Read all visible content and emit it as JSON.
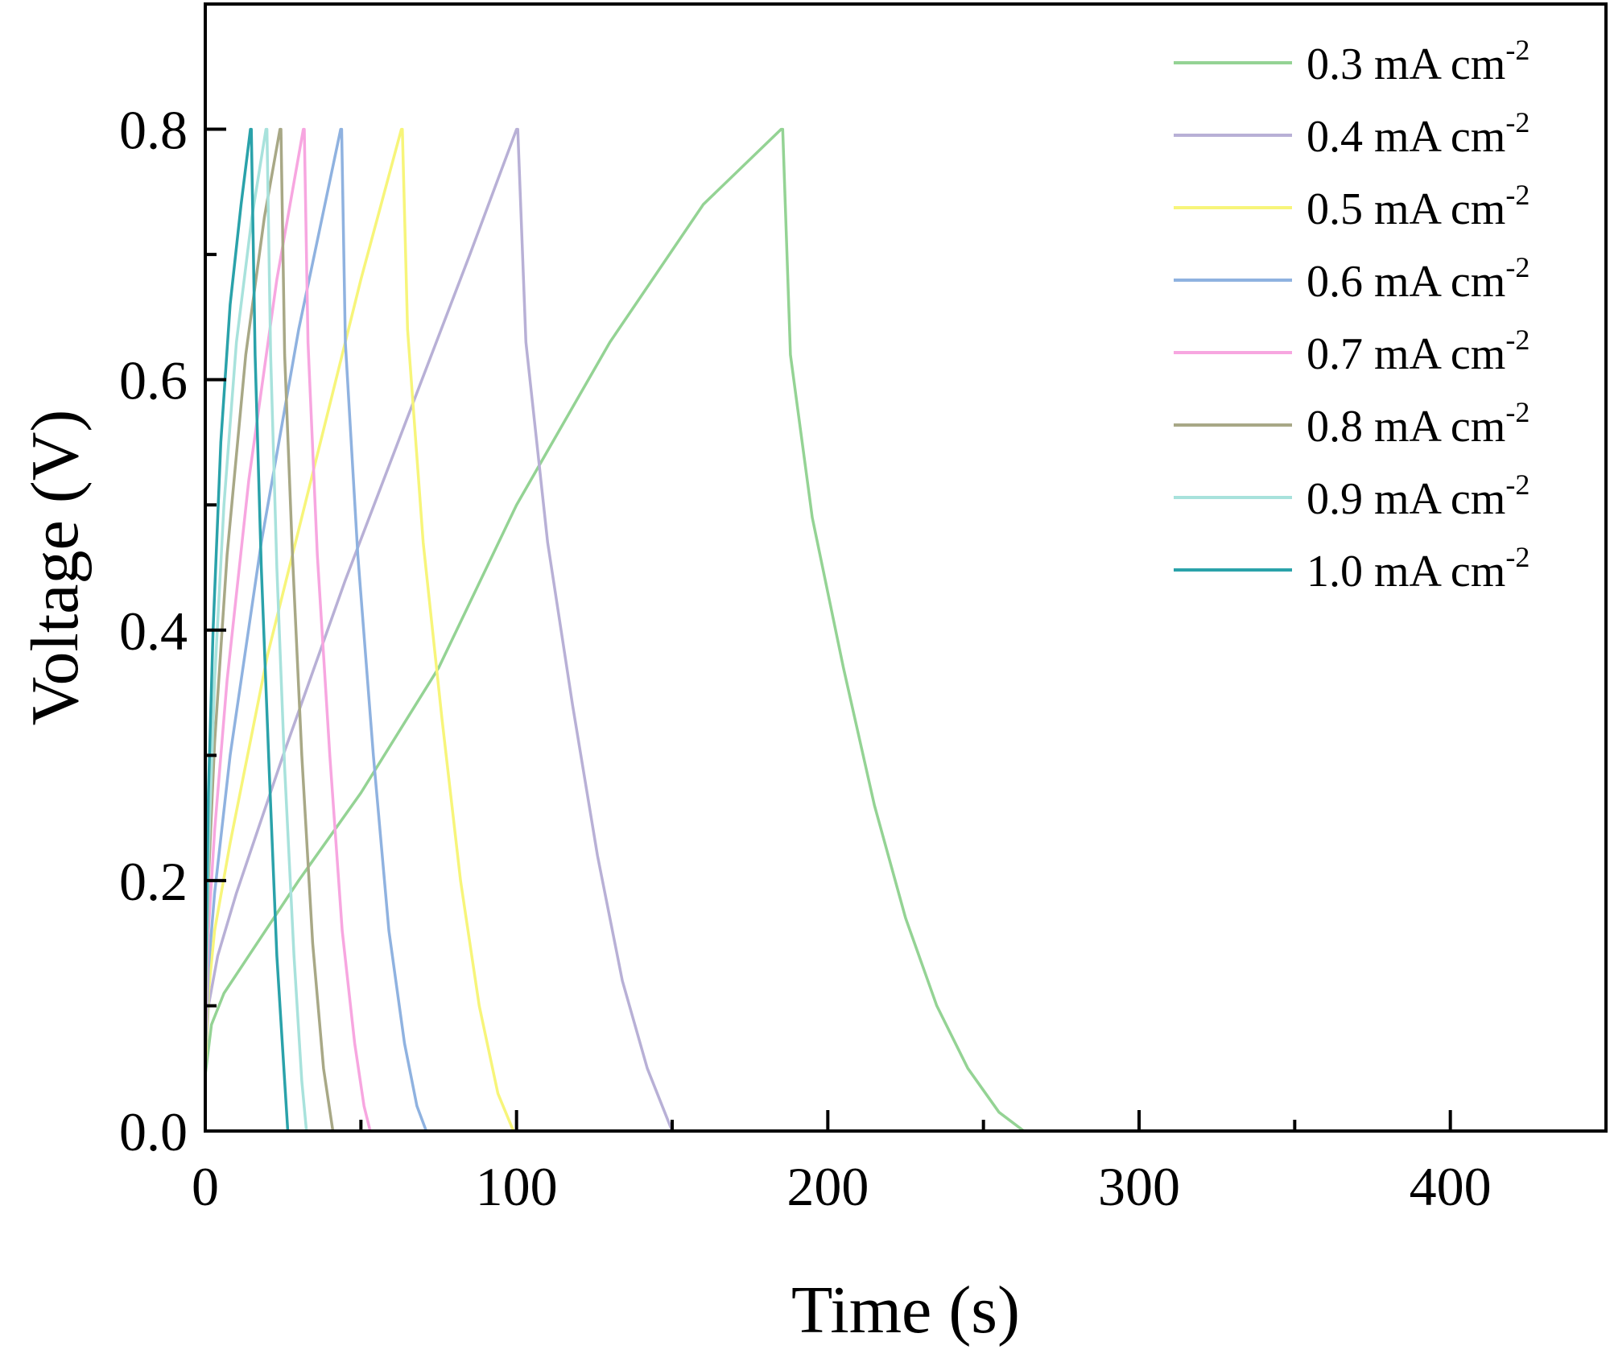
{
  "chart_data": {
    "type": "line",
    "title": "",
    "xlabel": "Time (s)",
    "ylabel": "Voltage (V)",
    "xlim": [
      0,
      450
    ],
    "ylim": [
      0,
      0.9
    ],
    "x_major_ticks": [
      0,
      100,
      200,
      300,
      400
    ],
    "x_tick_labels": [
      "0",
      "100",
      "200",
      "300",
      "400"
    ],
    "x_minor_ticks": [
      50,
      150,
      250,
      350
    ],
    "y_major_ticks": [
      0,
      0.2,
      0.4,
      0.6,
      0.8
    ],
    "y_tick_labels": [
      "0.0",
      "0.2",
      "0.4",
      "0.6",
      "0.8"
    ],
    "y_minor_ticks": [
      0.1,
      0.3,
      0.5,
      0.7
    ],
    "grid": false,
    "legend_position": "top-right",
    "series": [
      {
        "name": "0.3 mA cm",
        "superscript": "-2",
        "color": "#94d394",
        "x": [
          0,
          2,
          6,
          14,
          30,
          50,
          75,
          100,
          130,
          160,
          185,
          185.5,
          188,
          195,
          205,
          215,
          225,
          235,
          245,
          255,
          263
        ],
        "y": [
          0.045,
          0.085,
          0.11,
          0.14,
          0.2,
          0.27,
          0.37,
          0.5,
          0.63,
          0.74,
          0.8,
          0.8,
          0.62,
          0.49,
          0.37,
          0.26,
          0.17,
          0.1,
          0.05,
          0.015,
          0
        ]
      },
      {
        "name": "0.4 mA cm",
        "superscript": "-2",
        "color": "#b8b0d6",
        "x": [
          0,
          1,
          4,
          10,
          25,
          45,
          65,
          85,
          100,
          100.4,
          103,
          110,
          118,
          126,
          134,
          142,
          150
        ],
        "y": [
          0.05,
          0.1,
          0.14,
          0.19,
          0.3,
          0.44,
          0.57,
          0.7,
          0.8,
          0.8,
          0.63,
          0.47,
          0.34,
          0.22,
          0.12,
          0.05,
          0
        ]
      },
      {
        "name": "0.5 mA cm",
        "superscript": "-2",
        "color": "#f7f57a",
        "x": [
          0,
          1,
          3,
          8,
          20,
          35,
          50,
          63,
          63.3,
          65,
          70,
          76,
          82,
          88,
          94,
          99
        ],
        "y": [
          0.05,
          0.11,
          0.16,
          0.23,
          0.38,
          0.53,
          0.68,
          0.8,
          0.8,
          0.64,
          0.47,
          0.33,
          0.2,
          0.1,
          0.03,
          0
        ]
      },
      {
        "name": "0.6 mA cm",
        "superscript": "-2",
        "color": "#8fb2e0",
        "x": [
          0,
          1,
          3,
          8,
          18,
          30,
          43.5,
          43.8,
          45,
          49,
          54,
          59,
          64,
          68,
          71
        ],
        "y": [
          0.06,
          0.13,
          0.19,
          0.3,
          0.47,
          0.64,
          0.8,
          0.8,
          0.63,
          0.46,
          0.3,
          0.16,
          0.07,
          0.02,
          0
        ]
      },
      {
        "name": "0.7 mA cm",
        "superscript": "-2",
        "color": "#f7a6e0",
        "x": [
          0,
          1,
          3,
          7,
          14,
          23,
          31.5,
          31.8,
          33,
          36,
          40,
          44,
          48,
          51,
          53
        ],
        "y": [
          0.07,
          0.16,
          0.24,
          0.36,
          0.52,
          0.68,
          0.8,
          0.8,
          0.63,
          0.46,
          0.3,
          0.16,
          0.07,
          0.02,
          0
        ]
      },
      {
        "name": "0.8 mA cm",
        "superscript": "-2",
        "color": "#a8a886",
        "x": [
          0,
          1,
          3,
          7,
          13,
          19,
          24,
          24.3,
          25.5,
          28,
          31,
          34.5,
          38,
          41
        ],
        "y": [
          0.08,
          0.2,
          0.31,
          0.46,
          0.62,
          0.73,
          0.8,
          0.8,
          0.62,
          0.46,
          0.3,
          0.15,
          0.05,
          0
        ]
      },
      {
        "name": "0.9 mA cm",
        "superscript": "-2",
        "color": "#a8e2dc",
        "x": [
          0,
          1,
          3,
          6,
          10,
          15,
          19.5,
          19.8,
          21,
          23,
          25.5,
          28.5,
          31,
          32.5
        ],
        "y": [
          0.09,
          0.22,
          0.36,
          0.5,
          0.63,
          0.73,
          0.8,
          0.8,
          0.62,
          0.45,
          0.29,
          0.14,
          0.04,
          0
        ]
      },
      {
        "name": "1.0 mA cm",
        "superscript": "-2",
        "color": "#2aa2aa",
        "x": [
          0,
          1,
          2.5,
          5,
          8,
          11.5,
          14.5,
          14.8,
          16,
          18,
          20.5,
          23,
          25.5,
          26.5
        ],
        "y": [
          0.1,
          0.27,
          0.4,
          0.55,
          0.66,
          0.74,
          0.8,
          0.8,
          0.62,
          0.45,
          0.29,
          0.14,
          0.04,
          0
        ]
      }
    ]
  }
}
